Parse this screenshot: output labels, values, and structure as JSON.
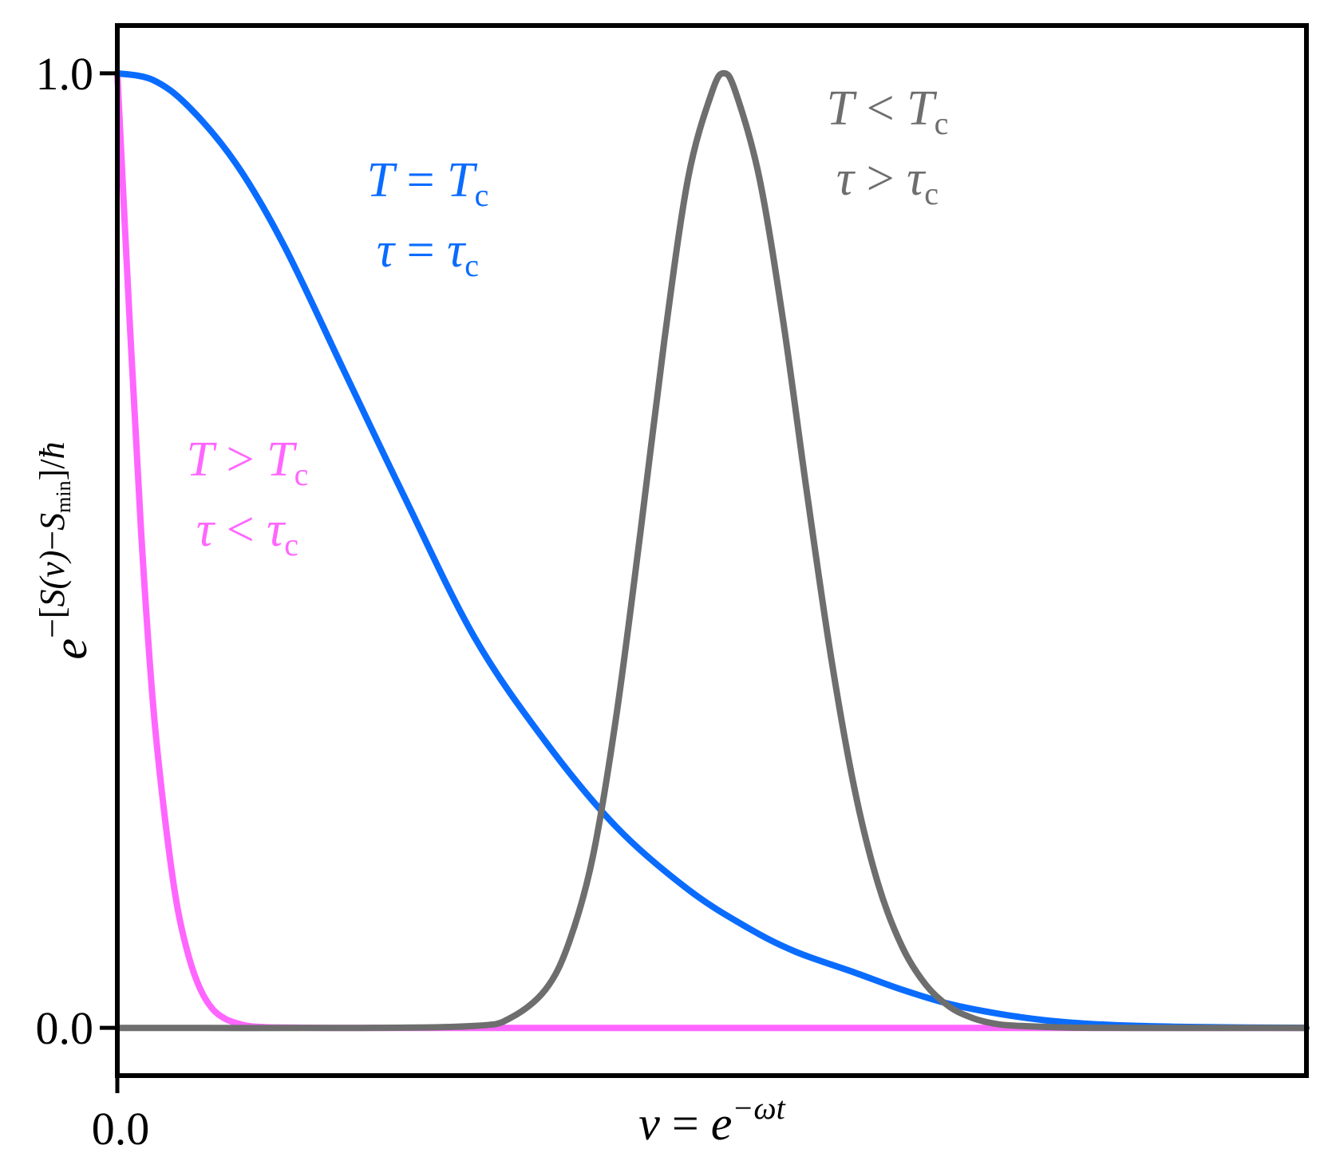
{
  "chart_data": {
    "type": "line",
    "title": "",
    "xlabel": "v = e^{−ωt}",
    "xlabel_parts": {
      "lhs": "v",
      "eq": " = ",
      "base": "e",
      "exp": "−ωt"
    },
    "ylabel": "e^{−[S(v)−S_min]/ħ}",
    "ylabel_parts": {
      "base": "e",
      "exp_pre": "−[",
      "S1": "S",
      "paren_v": "(v)",
      "minus": "−",
      "S2": "S",
      "sub": "min",
      "post": "]/",
      "hbar": "ħ"
    },
    "x_ticks": [
      0.0
    ],
    "x_tick_labels": [
      "0.0"
    ],
    "y_ticks": [
      0.0,
      1.0
    ],
    "y_tick_labels": [
      "0.0",
      "1.0"
    ],
    "xlim": [
      0.0,
      1.0
    ],
    "ylim": [
      -0.05,
      1.05
    ],
    "grid": false,
    "series": [
      {
        "color": "#ff66ff",
        "label_lines": [
          {
            "a": "T",
            "op": " > ",
            "b": "T",
            "sub": "c"
          },
          {
            "a": "τ",
            "op": " < ",
            "b": "τ",
            "sub": "c"
          }
        ],
        "x": [
          0.0,
          0.01,
          0.02,
          0.03,
          0.04,
          0.05,
          0.06,
          0.07,
          0.08,
          0.09,
          0.1,
          0.11,
          0.12,
          0.13,
          0.15,
          0.18,
          0.25,
          0.4,
          0.6,
          0.8,
          1.0
        ],
        "y": [
          1.0,
          0.75,
          0.52,
          0.34,
          0.22,
          0.13,
          0.075,
          0.04,
          0.02,
          0.01,
          0.005,
          0.002,
          0.001,
          0.0005,
          0.0002,
          0.0,
          0.0,
          0.0,
          0.0,
          0.0,
          0.0
        ]
      },
      {
        "color": "#0a6cff",
        "label_lines": [
          {
            "a": "T",
            "op": " = ",
            "b": "T",
            "sub": "c"
          },
          {
            "a": "τ",
            "op": " = ",
            "b": "τ",
            "sub": "c"
          }
        ],
        "x": [
          0.0,
          0.03,
          0.06,
          0.1,
          0.14,
          0.19,
          0.24,
          0.3,
          0.36,
          0.42,
          0.48,
          0.53,
          0.57,
          0.62,
          0.66,
          0.7,
          0.74,
          0.78,
          0.82,
          0.86,
          0.9,
          0.95,
          1.0
        ],
        "y": [
          1.0,
          0.993,
          0.965,
          0.905,
          0.82,
          0.69,
          0.56,
          0.41,
          0.3,
          0.21,
          0.145,
          0.105,
          0.08,
          0.058,
          0.04,
          0.025,
          0.015,
          0.008,
          0.004,
          0.002,
          0.001,
          0.0004,
          0.0001
        ]
      },
      {
        "color": "#6e6e6e",
        "label_lines": [
          {
            "a": "T",
            "op": " < ",
            "b": "T",
            "sub": "c"
          },
          {
            "a": "τ",
            "op": " > ",
            "b": "τ",
            "sub": "c"
          }
        ],
        "x": [
          0.0,
          0.2,
          0.3,
          0.33,
          0.36,
          0.38,
          0.4,
          0.42,
          0.44,
          0.46,
          0.48,
          0.5,
          0.51,
          0.52,
          0.54,
          0.56,
          0.58,
          0.6,
          0.62,
          0.64,
          0.66,
          0.68,
          0.7,
          0.72,
          0.74,
          0.76,
          0.8,
          0.85,
          0.9,
          1.0
        ],
        "y": [
          0.0,
          0.0,
          0.002,
          0.01,
          0.04,
          0.09,
          0.18,
          0.33,
          0.52,
          0.72,
          0.89,
          0.98,
          1.0,
          0.98,
          0.89,
          0.74,
          0.56,
          0.39,
          0.25,
          0.15,
          0.085,
          0.045,
          0.022,
          0.01,
          0.004,
          0.002,
          0.0004,
          0.0,
          0.0,
          0.0
        ]
      }
    ]
  }
}
